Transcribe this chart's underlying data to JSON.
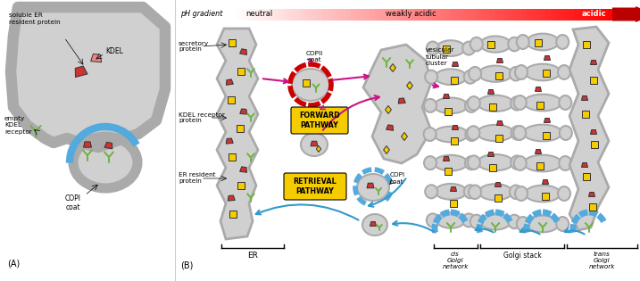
{
  "bg_color": "#ffffff",
  "mem_color": "#aaaaaa",
  "lum_color": "#d0d0d0",
  "copi_color": "#55aadd",
  "copii_color": "#cc0000",
  "kdel_color": "#6db33f",
  "sec_color": "#f5cc00",
  "res_color": "#cc3333",
  "fwd_color": "#cc1188",
  "ret_color": "#3399cc",
  "label_bg": "#f5cc00",
  "panel_a": "(A)",
  "panel_b": "(B)",
  "lbl_soluble_er": "soluble ER\nresident protein",
  "lbl_kdel": "KDEL",
  "lbl_empty_kdel": "empty\nKDEL\nreceptor",
  "lbl_copi_a": "COPI\ncoat",
  "lbl_secretory": "secretory\nprotein",
  "lbl_copii": "COPII\ncoat",
  "lbl_kdel_rec": "KDEL receptor\nprotein",
  "lbl_er_res": "ER resident\nprotein",
  "lbl_forward": "FORWARD\nPATHWAY",
  "lbl_retrieval": "RETRIEVAL\nPATHWAY",
  "lbl_copi_b": "COPI\ncoat",
  "lbl_vtc": "vesicular\ntubular\ncluster",
  "lbl_er": "ER",
  "lbl_cis": "cis\nGolgi\nnetwork",
  "lbl_golgi": "Golgi stack",
  "lbl_trans": "trans\nGolgi\nnetwork",
  "lbl_ph": "pH gradient",
  "lbl_neutral": "neutral",
  "lbl_weakly": "weakly acidic",
  "lbl_acidic": "acidic",
  "fig_w": 7.17,
  "fig_h": 3.15
}
